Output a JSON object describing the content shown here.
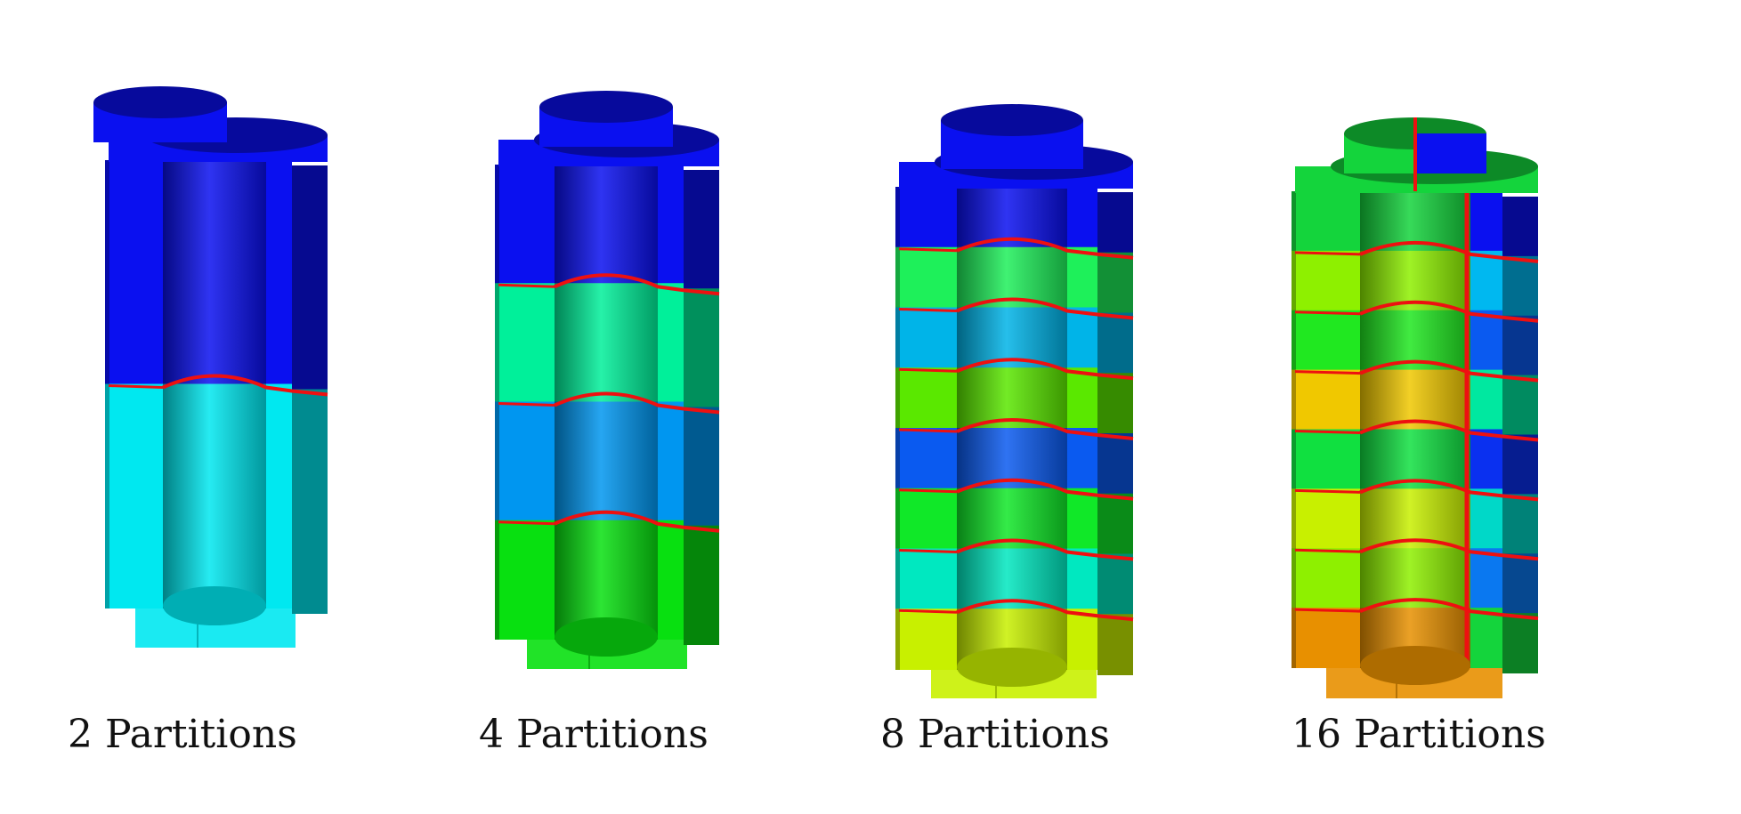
{
  "figure": {
    "panels": [
      {
        "caption": "2 Partitions",
        "partitions": 2,
        "colors": [
          "#0a10f0",
          "#00e8f0"
        ]
      },
      {
        "caption": "4 Partitions",
        "partitions": 4,
        "colors": [
          "#0a10f0",
          "#00f09a",
          "#0096f0",
          "#08e010"
        ]
      },
      {
        "caption": "8 Partitions",
        "partitions": 8,
        "colors": [
          "#0a10f0",
          "#1ef05a",
          "#00b4e8",
          "#5ae800",
          "#0a5af0",
          "#10e828",
          "#00e8c0",
          "#c8f000"
        ]
      },
      {
        "caption": "16 Partitions",
        "partitions": 16,
        "colors": [
          "#14d43c",
          "#8ef000",
          "#20e820",
          "#f0c800",
          "#10e040",
          "#c8f000",
          "#8ef000",
          "#e89000"
        ],
        "right_colors": [
          "#0a10f0",
          "#00b8f0",
          "#0a5af0",
          "#00e8a0",
          "#0a30f0",
          "#00d8c8",
          "#0a78f0",
          "#14d43c"
        ]
      }
    ],
    "boundary_color": "#ee1010"
  }
}
